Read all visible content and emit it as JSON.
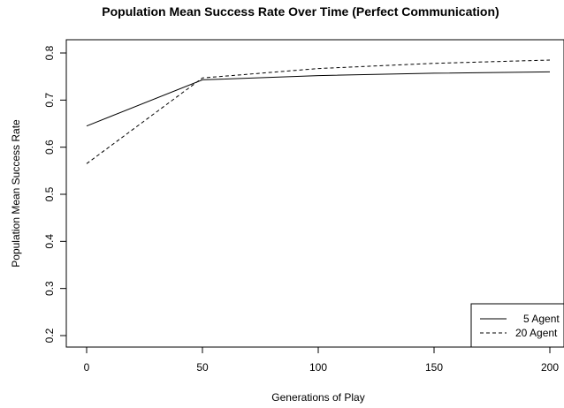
{
  "chart_data": {
    "type": "line",
    "title": "Population Mean Success Rate Over Time (Perfect Communication)",
    "xlabel": "Generations of Play",
    "ylabel": "Population Mean Success Rate",
    "xlim": [
      0,
      200
    ],
    "ylim": [
      0.2,
      0.8
    ],
    "x_ticks": [
      "0",
      "50",
      "100",
      "150",
      "200"
    ],
    "y_ticks": [
      "0.2",
      "0.3",
      "0.4",
      "0.5",
      "0.6",
      "0.7",
      "0.8"
    ],
    "x": [
      0,
      50,
      100,
      150,
      200
    ],
    "series": [
      {
        "name": "5 Agent",
        "style": "solid",
        "values": [
          0.645,
          0.743,
          0.752,
          0.757,
          0.76
        ]
      },
      {
        "name": "20 Agent",
        "style": "dashed",
        "values": [
          0.565,
          0.747,
          0.767,
          0.778,
          0.785
        ]
      }
    ],
    "grid": false,
    "legend_position": "bottom-right",
    "line_color": "#000000"
  }
}
